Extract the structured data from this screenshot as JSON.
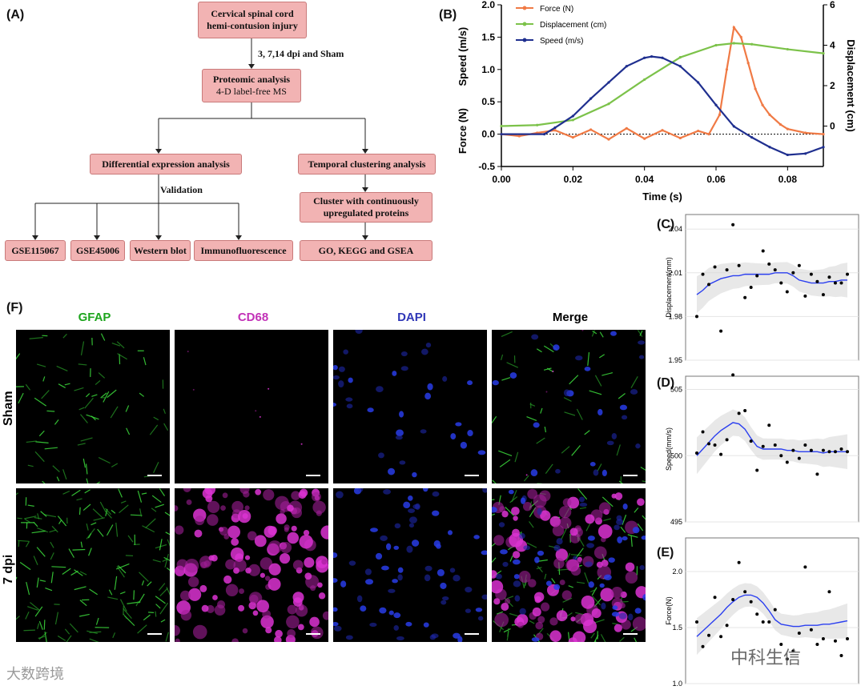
{
  "panels": {
    "A": "(A)",
    "B": "(B)",
    "C": "(C)",
    "D": "(D)",
    "E": "(E)",
    "F": "(F)"
  },
  "flowchart": {
    "top_box": {
      "line1": "Cervical spinal cord",
      "line2": "hemi-contusion injury"
    },
    "arrow_label": "3, 7,14 dpi and Sham",
    "proteomic_box": {
      "line1": "Proteomic analysis",
      "line2": "4-D label-free MS"
    },
    "diff_box": "Differential expression analysis",
    "temporal_box": "Temporal clustering analysis",
    "validation_label": "Validation",
    "cluster_box": {
      "line1": "Cluster with continuously",
      "line2": "upregulated proteins"
    },
    "leaves": [
      "GSE115067",
      "GSE45006",
      "Western blot",
      "Immunofluorescence"
    ],
    "go_box": "GO, KEGG and GSEA"
  },
  "chart_data": [
    {
      "type": "line",
      "id": "B",
      "title": "",
      "xlabel": "Time (s)",
      "ylabel_left": "Speed (m/s)",
      "ylabel_left2": "Force (N)",
      "ylabel_right": "Displacement (cm)",
      "xlim": [
        0,
        0.09
      ],
      "x_ticks": [
        "0.00",
        "0.02",
        "0.04",
        "0.06",
        "0.08"
      ],
      "ylim_left": [
        -0.5,
        2.0
      ],
      "y_ticks_left": [
        "2.0",
        "1.5",
        "1.0",
        "0.5",
        "0.0",
        "-0.5"
      ],
      "ylim_right": [
        -2,
        6
      ],
      "y_ticks_right": [
        "6",
        "4",
        "2",
        "0"
      ],
      "legend": [
        "Force (N)",
        "Displacement (cm)",
        "Speed (m/s)"
      ],
      "series": [
        {
          "name": "Force (N)",
          "color": "#f07a45",
          "x": [
            0,
            0.005,
            0.01,
            0.015,
            0.02,
            0.025,
            0.03,
            0.035,
            0.04,
            0.045,
            0.05,
            0.055,
            0.058,
            0.061,
            0.063,
            0.065,
            0.067,
            0.069,
            0.071,
            0.073,
            0.075,
            0.078,
            0.08,
            0.085,
            0.09
          ],
          "y": [
            0.0,
            -0.03,
            0.02,
            0.06,
            -0.05,
            0.07,
            -0.08,
            0.09,
            -0.07,
            0.06,
            -0.06,
            0.05,
            0.0,
            0.3,
            1.0,
            1.65,
            1.5,
            1.1,
            0.7,
            0.45,
            0.3,
            0.15,
            0.08,
            0.02,
            0.0
          ]
        },
        {
          "name": "Displacement (cm)",
          "color": "#7cc24a",
          "x": [
            0.0,
            0.01,
            0.02,
            0.03,
            0.04,
            0.05,
            0.06,
            0.065,
            0.07,
            0.08,
            0.09
          ],
          "y": [
            0.0,
            0.05,
            0.3,
            1.1,
            2.3,
            3.4,
            4.0,
            4.1,
            4.05,
            3.8,
            3.6
          ]
        },
        {
          "name": "Speed (m/s)",
          "color": "#1f2f8f",
          "x": [
            0.0,
            0.012,
            0.015,
            0.02,
            0.025,
            0.03,
            0.035,
            0.04,
            0.042,
            0.045,
            0.05,
            0.055,
            0.06,
            0.065,
            0.07,
            0.075,
            0.08,
            0.085,
            0.09
          ],
          "y": [
            0.0,
            0.0,
            0.1,
            0.28,
            0.55,
            0.8,
            1.05,
            1.18,
            1.2,
            1.18,
            1.05,
            0.8,
            0.45,
            0.12,
            -0.05,
            -0.2,
            -0.32,
            -0.3,
            -0.2
          ]
        }
      ]
    },
    {
      "type": "scatter",
      "id": "C",
      "ylabel": "Displacement(mm)",
      "ylim": [
        1.95,
        2.05
      ],
      "y_ticks": [
        "2.04",
        "2.01",
        "1.98",
        "1.95"
      ],
      "x": [
        1,
        2,
        3,
        4,
        5,
        6,
        7,
        8,
        9,
        10,
        11,
        12,
        13,
        14,
        15,
        16,
        17,
        18,
        19,
        20,
        21,
        22,
        23,
        24,
        25,
        26
      ],
      "values": [
        1.98,
        2.009,
        2.002,
        2.014,
        1.97,
        2.012,
        2.043,
        2.015,
        1.993,
        2.0,
        2.008,
        2.025,
        2.016,
        2.012,
        2.003,
        1.997,
        2.01,
        2.015,
        1.994,
        2.009,
        2.004,
        1.995,
        2.007,
        2.003,
        2.003,
        2.009
      ],
      "fit": [
        1.995,
        1.998,
        2.002,
        2.004,
        2.006,
        2.007,
        2.008,
        2.008,
        2.009,
        2.009,
        2.009,
        2.009,
        2.009,
        2.01,
        2.01,
        2.01,
        2.008,
        2.005,
        2.004,
        2.003,
        2.003,
        2.003,
        2.004,
        2.004,
        2.005,
        2.005
      ]
    },
    {
      "type": "scatter",
      "id": "D",
      "ylabel": "Speed(mm/s)",
      "ylim": [
        495,
        506
      ],
      "y_ticks": [
        "505",
        "500",
        "495"
      ],
      "x": [
        1,
        2,
        3,
        4,
        5,
        6,
        7,
        8,
        9,
        10,
        11,
        12,
        13,
        14,
        15,
        16,
        17,
        18,
        19,
        20,
        21,
        22,
        23,
        24,
        25,
        26
      ],
      "values": [
        500.2,
        501.8,
        500.9,
        500.8,
        500.1,
        501.2,
        506.1,
        503.2,
        503.4,
        501.1,
        498.9,
        500.7,
        502.3,
        500.8,
        500.0,
        499.5,
        500.4,
        499.8,
        500.8,
        500.4,
        498.6,
        500.4,
        500.3,
        500.3,
        500.5,
        500.3
      ],
      "fit": [
        500.0,
        500.5,
        501.0,
        501.5,
        501.9,
        502.2,
        502.5,
        502.4,
        502.0,
        501.3,
        500.7,
        500.5,
        500.5,
        500.5,
        500.5,
        500.4,
        500.4,
        500.3,
        500.3,
        500.3,
        500.3,
        500.2,
        500.3,
        500.3,
        500.3,
        500.3
      ]
    },
    {
      "type": "scatter",
      "id": "E",
      "ylabel": "Force(N)",
      "ylim": [
        1.0,
        2.3
      ],
      "y_ticks": [
        "2.0",
        "1.5",
        "1.0"
      ],
      "x": [
        1,
        2,
        3,
        4,
        5,
        6,
        7,
        8,
        9,
        10,
        11,
        12,
        13,
        14,
        15,
        16,
        17,
        18,
        19,
        20,
        21,
        22,
        23,
        24,
        25,
        26
      ],
      "values": [
        1.55,
        1.33,
        1.43,
        1.77,
        1.42,
        1.52,
        1.75,
        2.08,
        1.82,
        1.73,
        1.62,
        1.55,
        1.55,
        1.66,
        1.35,
        1.22,
        1.29,
        1.45,
        2.04,
        1.48,
        1.35,
        1.4,
        1.82,
        1.38,
        1.25,
        1.4
      ],
      "fit": [
        1.42,
        1.47,
        1.52,
        1.57,
        1.62,
        1.68,
        1.73,
        1.77,
        1.79,
        1.79,
        1.77,
        1.72,
        1.65,
        1.57,
        1.53,
        1.52,
        1.51,
        1.51,
        1.52,
        1.52,
        1.52,
        1.53,
        1.53,
        1.54,
        1.55,
        1.56
      ]
    }
  ],
  "micrographs": {
    "columns": [
      {
        "label": "GFAP",
        "color": "#1ea51e"
      },
      {
        "label": "CD68",
        "color": "#c231b7"
      },
      {
        "label": "DAPI",
        "color": "#2f37b7"
      },
      {
        "label": "Merge",
        "color": "#000000"
      }
    ],
    "rows": [
      "Sham",
      "7 dpi"
    ]
  },
  "watermark": {
    "left": "大数跨境",
    "right": "中科生信"
  }
}
